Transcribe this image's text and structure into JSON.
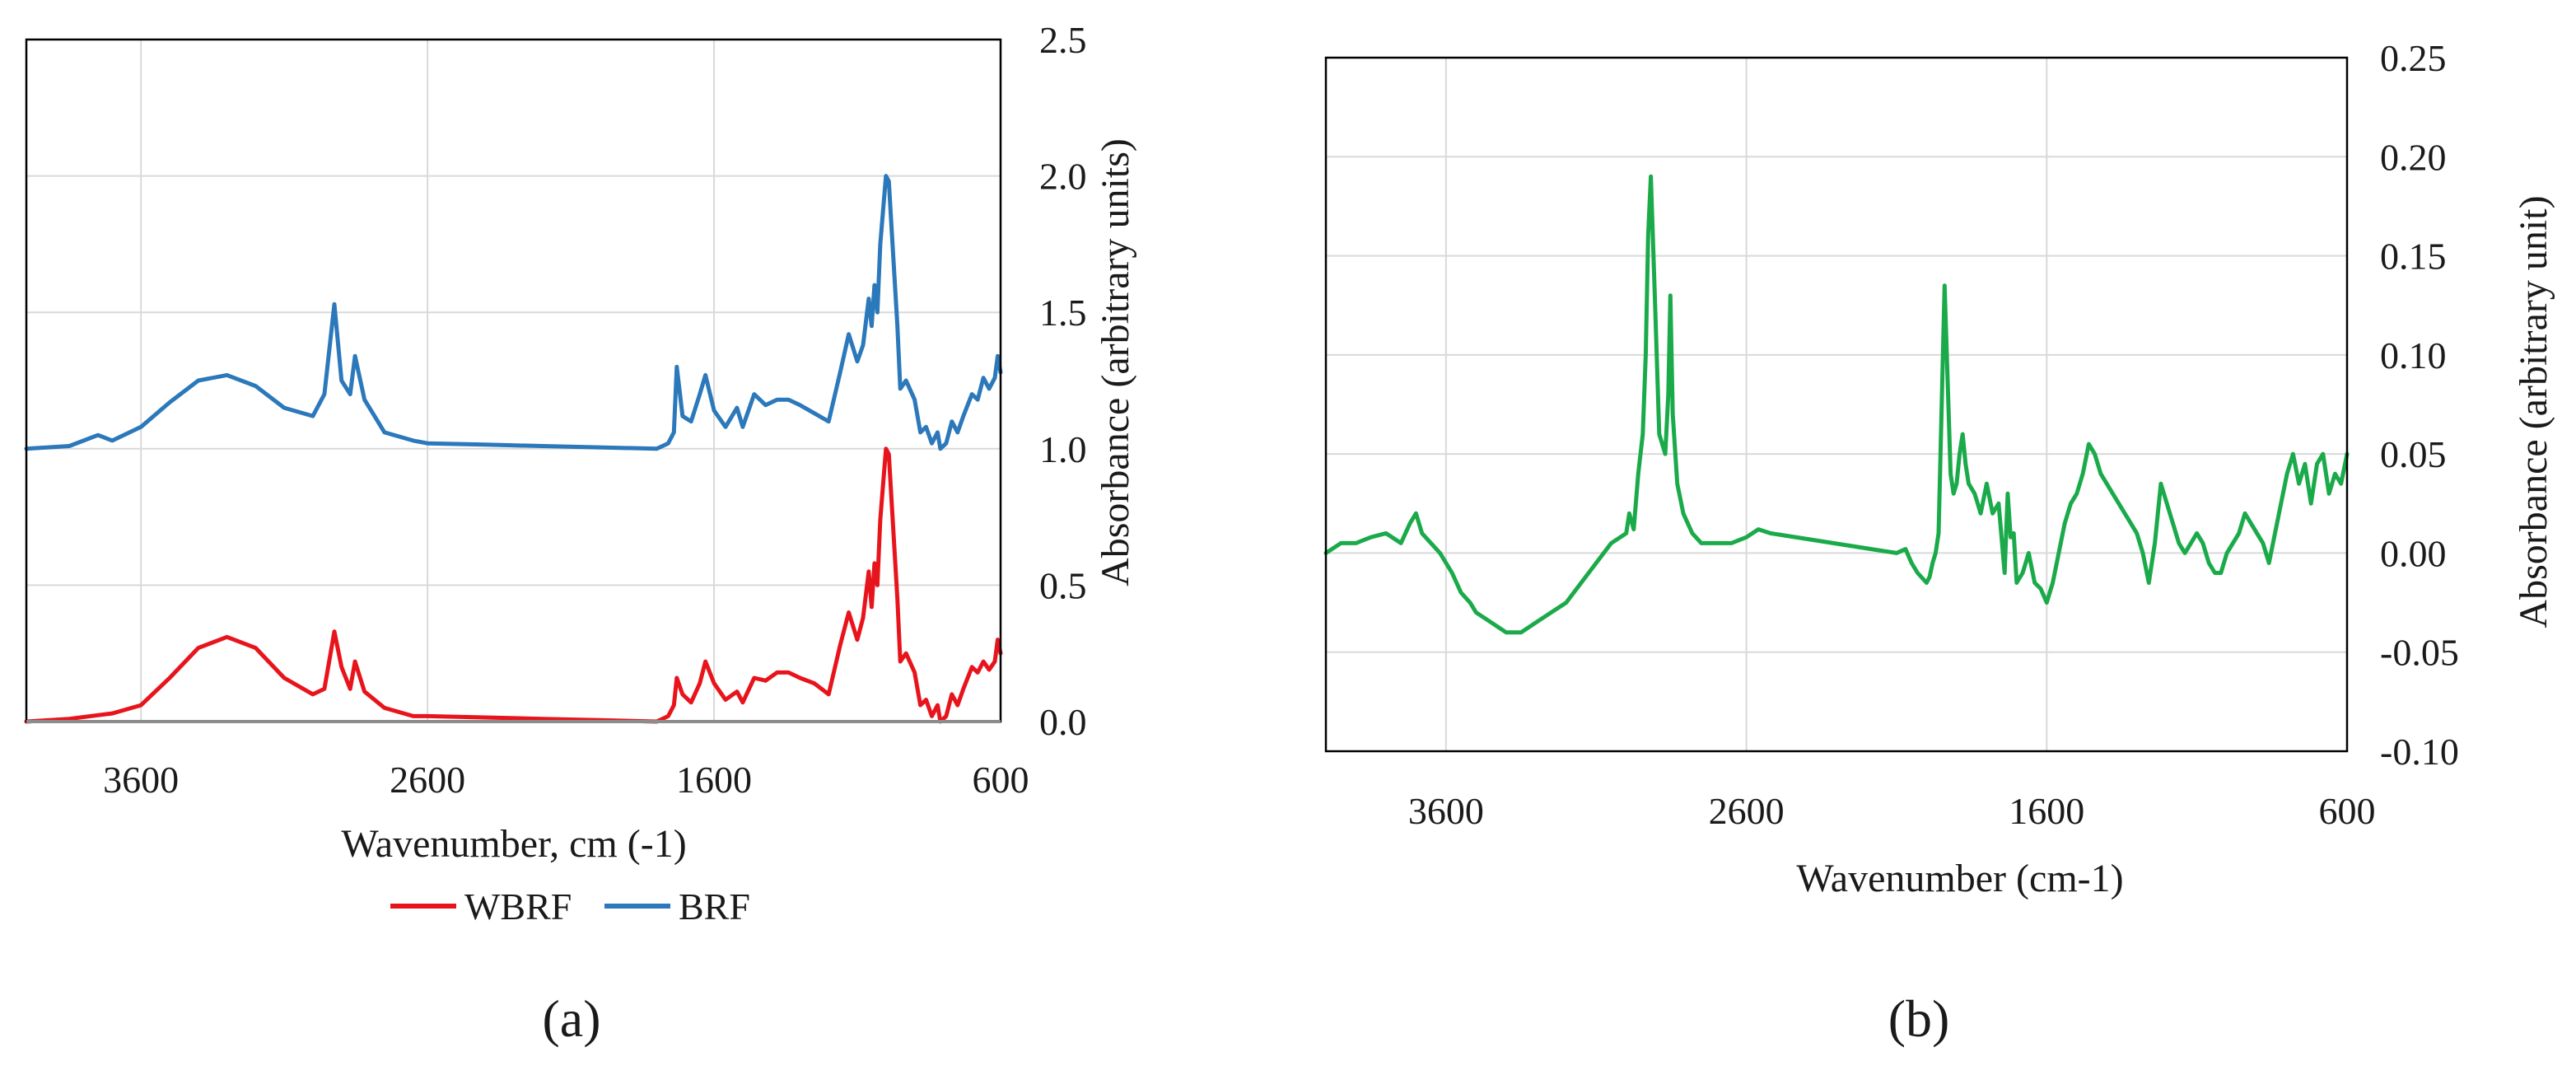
{
  "chart_data": [
    {
      "type": "line",
      "panel_label": "(a)",
      "title": "",
      "xlabel": "Wavenumber, cm (-1)",
      "ylabel": "Absorbance (arbitrary units)",
      "xlim": [
        4000,
        600
      ],
      "ylim": [
        0,
        2.5
      ],
      "x_reversed": true,
      "y_axis_side": "right",
      "x_ticks": [
        3600,
        2600,
        1600,
        600
      ],
      "x_tick_labels": [
        "3600",
        "2600",
        "1600",
        "600"
      ],
      "y_ticks": [
        0,
        0.5,
        1.0,
        1.5,
        2.0,
        2.5
      ],
      "y_tick_labels": [
        "0.0",
        "0.5",
        "1.0",
        "1.5",
        "2.0",
        "2.5"
      ],
      "grid": true,
      "legend_position": "bottom",
      "series": [
        {
          "name": "WBRF",
          "color": "#e8141c",
          "x": [
            4000,
            3850,
            3700,
            3600,
            3500,
            3400,
            3300,
            3200,
            3100,
            3000,
            2960,
            2925,
            2900,
            2870,
            2853,
            2820,
            2750,
            2650,
            2600,
            2400,
            2200,
            2000,
            1800,
            1760,
            1740,
            1730,
            1710,
            1680,
            1650,
            1630,
            1600,
            1560,
            1520,
            1500,
            1460,
            1420,
            1380,
            1340,
            1300,
            1250,
            1200,
            1160,
            1130,
            1100,
            1080,
            1060,
            1050,
            1040,
            1030,
            1020,
            1000,
            990,
            980,
            960,
            950,
            930,
            900,
            880,
            860,
            840,
            820,
            810,
            790,
            770,
            750,
            730,
            700,
            680,
            660,
            640,
            620,
            610,
            600
          ],
          "values": [
            0.0,
            0.01,
            0.03,
            0.06,
            0.16,
            0.27,
            0.31,
            0.27,
            0.16,
            0.1,
            0.12,
            0.33,
            0.2,
            0.12,
            0.22,
            0.11,
            0.05,
            0.02,
            0.02,
            0.015,
            0.01,
            0.005,
            0.0,
            0.02,
            0.06,
            0.16,
            0.1,
            0.07,
            0.14,
            0.22,
            0.14,
            0.08,
            0.11,
            0.07,
            0.16,
            0.15,
            0.18,
            0.18,
            0.16,
            0.14,
            0.1,
            0.28,
            0.4,
            0.3,
            0.38,
            0.55,
            0.42,
            0.58,
            0.5,
            0.74,
            1.0,
            0.98,
            0.8,
            0.45,
            0.22,
            0.25,
            0.18,
            0.06,
            0.08,
            0.02,
            0.06,
            0.0,
            0.02,
            0.1,
            0.06,
            0.12,
            0.2,
            0.18,
            0.22,
            0.19,
            0.22,
            0.3,
            0.25
          ]
        },
        {
          "name": "BRF",
          "color": "#2b78ba",
          "x": [
            4000,
            3850,
            3750,
            3700,
            3600,
            3500,
            3400,
            3300,
            3200,
            3100,
            3000,
            2960,
            2925,
            2900,
            2870,
            2853,
            2820,
            2750,
            2650,
            2600,
            2400,
            2200,
            2000,
            1800,
            1760,
            1740,
            1730,
            1710,
            1680,
            1650,
            1630,
            1600,
            1560,
            1520,
            1500,
            1460,
            1420,
            1380,
            1340,
            1300,
            1250,
            1200,
            1160,
            1130,
            1100,
            1080,
            1060,
            1050,
            1040,
            1030,
            1020,
            1000,
            990,
            980,
            960,
            950,
            930,
            900,
            880,
            860,
            840,
            820,
            810,
            790,
            770,
            750,
            730,
            700,
            680,
            660,
            640,
            620,
            610,
            600
          ],
          "values": [
            1.0,
            1.01,
            1.05,
            1.03,
            1.08,
            1.17,
            1.25,
            1.27,
            1.23,
            1.15,
            1.12,
            1.2,
            1.53,
            1.25,
            1.2,
            1.34,
            1.18,
            1.06,
            1.03,
            1.02,
            1.015,
            1.01,
            1.005,
            1.0,
            1.02,
            1.06,
            1.3,
            1.12,
            1.1,
            1.2,
            1.27,
            1.14,
            1.08,
            1.15,
            1.08,
            1.2,
            1.16,
            1.18,
            1.18,
            1.16,
            1.13,
            1.1,
            1.28,
            1.42,
            1.32,
            1.38,
            1.55,
            1.45,
            1.6,
            1.5,
            1.75,
            2.0,
            1.98,
            1.8,
            1.45,
            1.22,
            1.25,
            1.18,
            1.06,
            1.08,
            1.02,
            1.06,
            1.0,
            1.02,
            1.1,
            1.06,
            1.12,
            1.2,
            1.18,
            1.26,
            1.22,
            1.26,
            1.34,
            1.28
          ]
        }
      ]
    },
    {
      "type": "line",
      "panel_label": "(b)",
      "title": "",
      "xlabel": "Wavenumber (cm-1)",
      "ylabel": "Absorbance (arbitrary unit)",
      "xlim": [
        4000,
        600
      ],
      "ylim": [
        -0.1,
        0.25
      ],
      "x_reversed": true,
      "y_axis_side": "right",
      "x_ticks": [
        3600,
        2600,
        1600,
        600
      ],
      "x_tick_labels": [
        "3600",
        "2600",
        "1600",
        "600"
      ],
      "y_ticks": [
        -0.1,
        -0.05,
        0.0,
        0.05,
        0.1,
        0.15,
        0.2,
        0.25
      ],
      "y_tick_labels": [
        "-0.10",
        "-0.05",
        "0.00",
        "0.05",
        "0.10",
        "0.15",
        "0.20",
        "0.25"
      ],
      "grid": true,
      "legend_position": "none",
      "series": [
        {
          "name": "",
          "color": "#1aaa4a",
          "x": [
            4000,
            3950,
            3900,
            3850,
            3800,
            3750,
            3720,
            3700,
            3680,
            3650,
            3620,
            3600,
            3580,
            3550,
            3520,
            3500,
            3450,
            3400,
            3350,
            3300,
            3250,
            3200,
            3150,
            3100,
            3050,
            3000,
            2990,
            2975,
            2960,
            2945,
            2935,
            2927,
            2918,
            2905,
            2890,
            2870,
            2860,
            2853,
            2845,
            2830,
            2810,
            2780,
            2750,
            2700,
            2650,
            2600,
            2560,
            2520,
            2100,
            2070,
            2050,
            2030,
            2000,
            1990,
            1980,
            1970,
            1960,
            1940,
            1920,
            1910,
            1900,
            1890,
            1880,
            1870,
            1860,
            1840,
            1820,
            1800,
            1780,
            1760,
            1740,
            1730,
            1720,
            1710,
            1700,
            1680,
            1660,
            1640,
            1620,
            1600,
            1580,
            1560,
            1540,
            1520,
            1500,
            1480,
            1460,
            1440,
            1420,
            1400,
            1380,
            1360,
            1340,
            1320,
            1300,
            1280,
            1260,
            1240,
            1220,
            1200,
            1180,
            1160,
            1140,
            1120,
            1100,
            1080,
            1060,
            1040,
            1020,
            1000,
            980,
            960,
            940,
            920,
            900,
            880,
            860,
            840,
            820,
            800,
            780,
            760,
            740,
            720,
            700,
            680,
            660,
            640,
            620,
            600
          ],
          "values": [
            0.0,
            0.005,
            0.005,
            0.008,
            0.01,
            0.005,
            0.015,
            0.02,
            0.01,
            0.005,
            0.0,
            -0.005,
            -0.01,
            -0.02,
            -0.025,
            -0.03,
            -0.035,
            -0.04,
            -0.04,
            -0.035,
            -0.03,
            -0.025,
            -0.015,
            -0.005,
            0.005,
            0.01,
            0.02,
            0.012,
            0.04,
            0.06,
            0.1,
            0.16,
            0.19,
            0.13,
            0.06,
            0.05,
            0.08,
            0.13,
            0.07,
            0.035,
            0.02,
            0.01,
            0.005,
            0.005,
            0.005,
            0.008,
            0.012,
            0.01,
            0.0,
            0.002,
            -0.005,
            -0.01,
            -0.015,
            -0.012,
            -0.005,
            0.0,
            0.01,
            0.135,
            0.04,
            0.03,
            0.035,
            0.05,
            0.06,
            0.045,
            0.035,
            0.03,
            0.02,
            0.035,
            0.02,
            0.025,
            -0.01,
            0.03,
            0.008,
            0.01,
            -0.015,
            -0.01,
            0.0,
            -0.015,
            -0.018,
            -0.025,
            -0.015,
            0.0,
            0.015,
            0.025,
            0.03,
            0.04,
            0.055,
            0.05,
            0.04,
            0.035,
            0.03,
            0.025,
            0.02,
            0.015,
            0.01,
            0.0,
            -0.015,
            0.005,
            0.035,
            0.025,
            0.015,
            0.005,
            0.0,
            0.005,
            0.01,
            0.005,
            -0.005,
            -0.01,
            -0.01,
            0.0,
            0.005,
            0.01,
            0.02,
            0.015,
            0.01,
            0.005,
            -0.005,
            0.01,
            0.025,
            0.04,
            0.05,
            0.035,
            0.045,
            0.025,
            0.045,
            0.05,
            0.03,
            0.04,
            0.035,
            0.05
          ]
        }
      ]
    }
  ]
}
